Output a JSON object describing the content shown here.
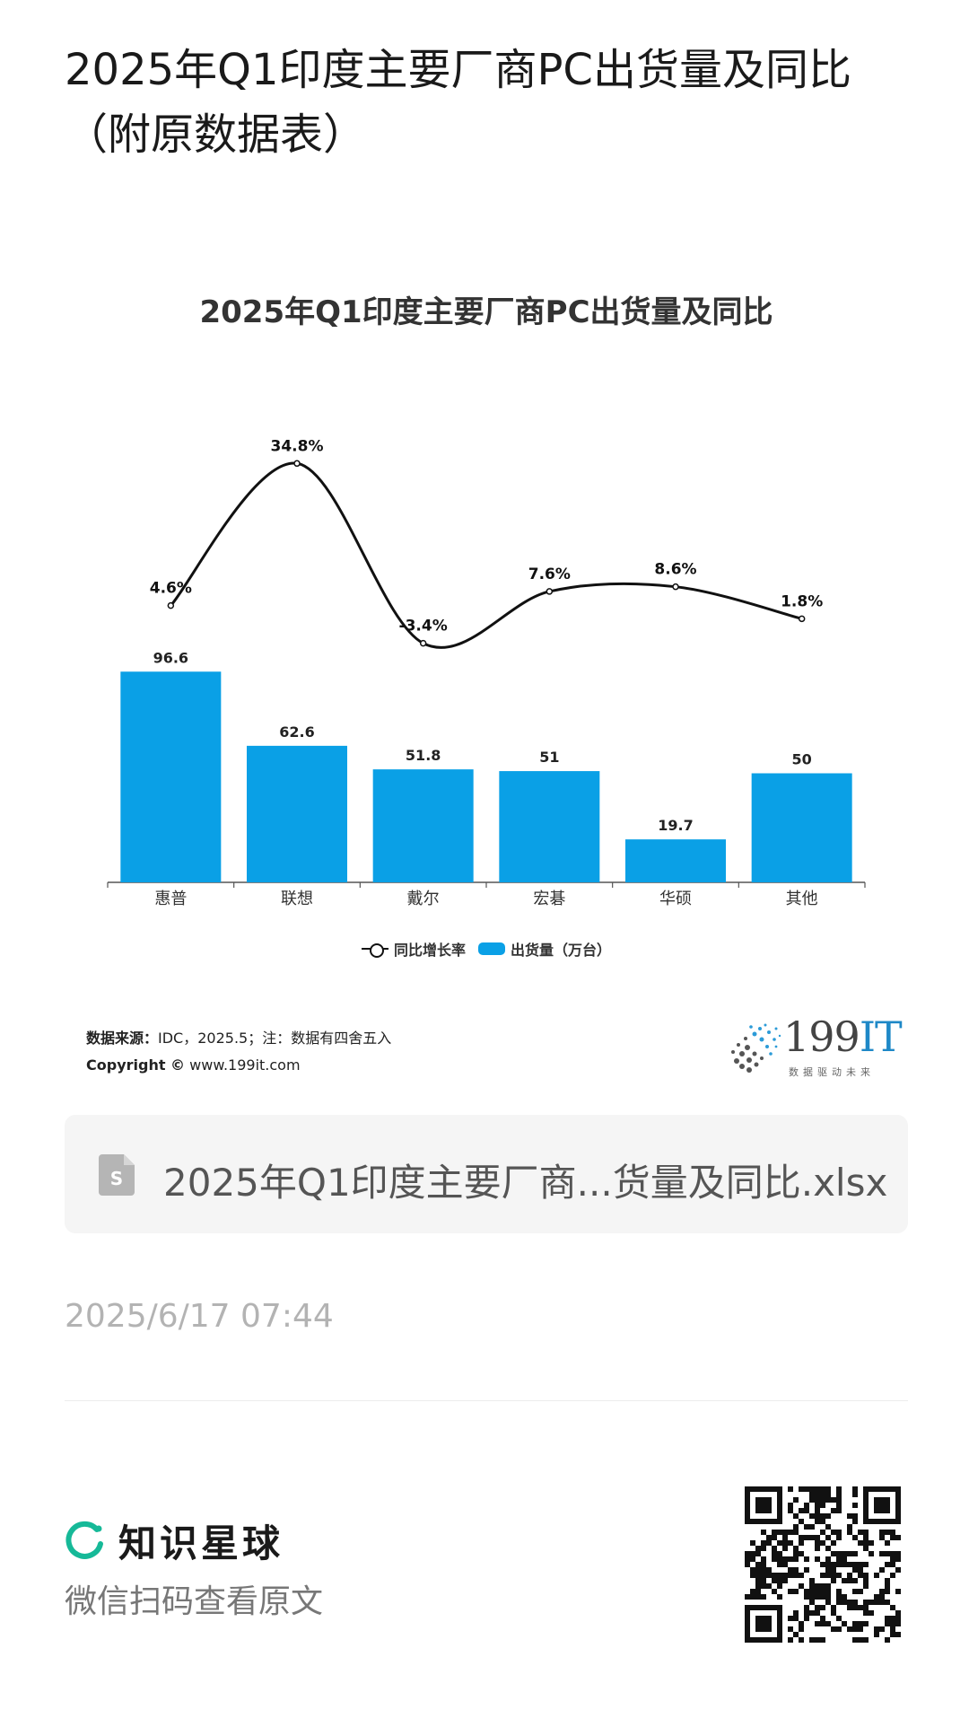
{
  "post": {
    "title": "2025年Q1印度主要厂商PC出货量及同比（附原数据表）",
    "date": "2025/6/17 07:44"
  },
  "chart_data": {
    "type": "bar",
    "title": "2025年Q1印度主要厂商PC出货量及同比",
    "categories": [
      "惠普",
      "联想",
      "戴尔",
      "宏碁",
      "华硕",
      "其他"
    ],
    "series": [
      {
        "name": "出货量（万台）",
        "type": "bar",
        "values": [
          96.6,
          62.6,
          51.8,
          51,
          19.7,
          50
        ],
        "labels": [
          "96.6",
          "62.6",
          "51.8",
          "51",
          "19.7",
          "50"
        ],
        "color": "#0aa0e6"
      },
      {
        "name": "同比增长率",
        "type": "line",
        "values": [
          4.6,
          34.8,
          -3.4,
          7.6,
          8.6,
          1.8
        ],
        "labels": [
          "4.6%",
          "34.8%",
          "-3.4%",
          "7.6%",
          "8.6%",
          "1.8%"
        ],
        "color": "#111111"
      }
    ],
    "legend": [
      "同比增长率",
      "出货量（万台）"
    ],
    "legend_position": "bottom",
    "grid": false,
    "bar_ylim": [
      0,
      100
    ],
    "line_ylim": [
      -5,
      36
    ]
  },
  "source": {
    "label": "数据来源：",
    "text": "IDC，2025.5；注：数据有四舍五入",
    "copyright_label": "Copyright ©",
    "copyright_text": "www.199it.com"
  },
  "brand": {
    "name_num": "199",
    "name_it": "IT",
    "slogan": "数据驱动未来",
    "accent": "#1e88c7"
  },
  "attachment": {
    "file_name": "2025年Q1印度主要厂商...货量及同比.xlsx",
    "icon": "spreadsheet-file-icon"
  },
  "footer": {
    "planet_name": "知识星球",
    "scan_hint": "微信扫码查看原文",
    "planet_color": "#16b998",
    "qr_icon": "qr-code-icon"
  }
}
